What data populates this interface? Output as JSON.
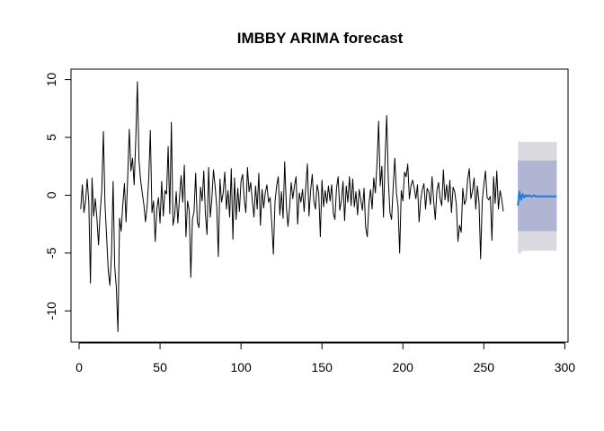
{
  "chart_data": {
    "type": "line",
    "title": "IMBBY ARIMA forecast",
    "xlabel": "",
    "ylabel": "",
    "xlim": [
      -5,
      302
    ],
    "ylim": [
      -12.7,
      10.9
    ],
    "x_ticks": [
      0,
      50,
      100,
      150,
      200,
      250,
      300
    ],
    "y_ticks": [
      -10,
      -5,
      0,
      5,
      10
    ],
    "grid": false,
    "legend": "none",
    "colors": {
      "observed": "#000000",
      "forecast_mean": "#1f7ad8",
      "band_80": "#b0b5d3",
      "band_95": "#d9d9df"
    },
    "series": [
      {
        "key": "observed",
        "x_start": 1,
        "values": [
          -1.2,
          0.9,
          -1.5,
          -0.5,
          1.4,
          -0.6,
          -7.6,
          1.5,
          -1.8,
          -0.3,
          -2.0,
          -4.3,
          -1.5,
          0.4,
          5.5,
          -0.8,
          -3.6,
          -6.5,
          -7.8,
          -5.2,
          1.2,
          -6.2,
          -8.0,
          -11.8,
          -2.0,
          -3.1,
          -0.8,
          1.0,
          -2.3,
          1.5,
          5.7,
          2.1,
          3.2,
          0.9,
          4.8,
          9.8,
          3.0,
          1.3,
          0.2,
          -0.8,
          -2.3,
          -1.0,
          1.4,
          5.6,
          -1.5,
          -0.5,
          -4.0,
          -1.2,
          -0.2,
          -2.4,
          1.2,
          -1.8,
          0.4,
          0.1,
          4.2,
          -1.6,
          6.3,
          -2.6,
          -1.8,
          0.3,
          -2.4,
          -0.2,
          1.7,
          -0.6,
          2.6,
          -3.6,
          -0.5,
          -1.3,
          -7.1,
          -2.1,
          -1.4,
          1.9,
          -2.3,
          -2.8,
          0.7,
          -0.5,
          2.1,
          -1.6,
          -3.4,
          2.4,
          -1.9,
          -0.3,
          2.2,
          0.8,
          -1.0,
          -5.3,
          1.4,
          -0.6,
          0.2,
          2.0,
          -1.2,
          0.4,
          -1.9,
          2.3,
          -3.8,
          1.5,
          -2.1,
          0.6,
          -1.4,
          1.2,
          1.8,
          -0.4,
          -1.5,
          2.4,
          0.3,
          1.1,
          -0.5,
          -1.9,
          0.8,
          -1.2,
          1.9,
          -2.6,
          0.5,
          -1.1,
          0.2,
          0.9,
          -0.6,
          -0.2,
          -2.4,
          -5.1,
          -0.6,
          0.8,
          1.6,
          -1.7,
          0.3,
          -2.0,
          2.9,
          -0.9,
          -2.7,
          -1.1,
          1.1,
          -0.3,
          0.8,
          1.6,
          -2.5,
          0.2,
          -0.6,
          0.5,
          -1.4,
          0.7,
          2.7,
          -1.8,
          0.4,
          1.8,
          -0.5,
          -1.2,
          0.9,
          0.2,
          -3.6,
          1.3,
          -1.0,
          0.4,
          -0.7,
          0.8,
          -0.5,
          0.9,
          -1.5,
          -2.1,
          0.6,
          1.6,
          -1.3,
          -0.5,
          1.2,
          -2.2,
          0.8,
          -0.6,
          1.6,
          -0.9,
          1.4,
          -1.0,
          0.3,
          -1.7,
          0.5,
          -0.4,
          -1.3,
          0.6,
          -2.8,
          -3.6,
          -0.8,
          0.5,
          -1.2,
          1.5,
          0.2,
          2.7,
          6.4,
          0.8,
          2.5,
          -1.9,
          3.2,
          6.9,
          1.3,
          -1.5,
          -2.1,
          0.7,
          3.2,
          0.2,
          -1.0,
          -5.0,
          0.4,
          -0.5,
          2.0,
          1.6,
          2.7,
          -0.3,
          0.8,
          1.3,
          0.6,
          -0.3,
          0.9,
          -2.3,
          -0.4,
          0.5,
          1.0,
          -1.2,
          0.6,
          0.3,
          -0.8,
          1.6,
          -0.5,
          -2.1,
          0.4,
          1.1,
          -0.3,
          -0.9,
          2.2,
          -0.4,
          0.9,
          -0.6,
          1.3,
          -1.5,
          0.7,
          0.3,
          -0.8,
          -4.0,
          -2.6,
          -3.2,
          0.6,
          -0.8,
          -0.4,
          1.4,
          2.3,
          -0.3,
          0.4,
          1.5,
          -1.2,
          0.8,
          -0.6,
          -5.5,
          -0.5,
          0.9,
          2.1,
          -0.2,
          -0.4,
          -0.1,
          -3.9,
          1.6,
          -0.7,
          2.1,
          -1.2,
          0.4,
          -0.3,
          -1.4
        ]
      }
    ],
    "forecast": {
      "x_start": 271,
      "mean": [
        -0.9,
        0.3,
        -0.4,
        0.1,
        -0.2,
        0.0,
        -0.1,
        0.0,
        -0.1,
        -0.1,
        0.0,
        -0.1,
        -0.1,
        -0.1,
        -0.1,
        -0.1,
        -0.1,
        -0.1,
        -0.1,
        -0.1,
        -0.1,
        -0.1,
        -0.1,
        -0.1,
        -0.1
      ],
      "lo80": [
        -3.1,
        -3.1,
        -3.1,
        -3.1,
        -3.1,
        -3.1,
        -3.1,
        -3.1,
        -3.1,
        -3.1,
        -3.1,
        -3.1,
        -3.1,
        -3.1,
        -3.1,
        -3.1,
        -3.1,
        -3.1,
        -3.1,
        -3.1,
        -3.1,
        -3.1,
        -3.1,
        -3.1,
        -3.1
      ],
      "hi80": [
        3.0,
        3.0,
        3.0,
        3.0,
        3.0,
        3.0,
        3.0,
        3.0,
        3.0,
        3.0,
        3.0,
        3.0,
        3.0,
        3.0,
        3.0,
        3.0,
        3.0,
        3.0,
        3.0,
        3.0,
        3.0,
        3.0,
        3.0,
        3.0,
        3.0
      ],
      "lo95": [
        -4.8,
        -5.1,
        -4.9,
        -4.8,
        -4.8,
        -4.8,
        -4.8,
        -4.8,
        -4.8,
        -4.8,
        -4.8,
        -4.8,
        -4.8,
        -4.8,
        -4.8,
        -4.8,
        -4.8,
        -4.8,
        -4.8,
        -4.8,
        -4.8,
        -4.8,
        -4.8,
        -4.8,
        -4.8
      ],
      "hi95": [
        4.5,
        4.7,
        4.6,
        4.6,
        4.6,
        4.6,
        4.6,
        4.6,
        4.6,
        4.6,
        4.6,
        4.6,
        4.6,
        4.6,
        4.6,
        4.6,
        4.6,
        4.6,
        4.6,
        4.6,
        4.6,
        4.6,
        4.6,
        4.6,
        4.6
      ]
    }
  }
}
